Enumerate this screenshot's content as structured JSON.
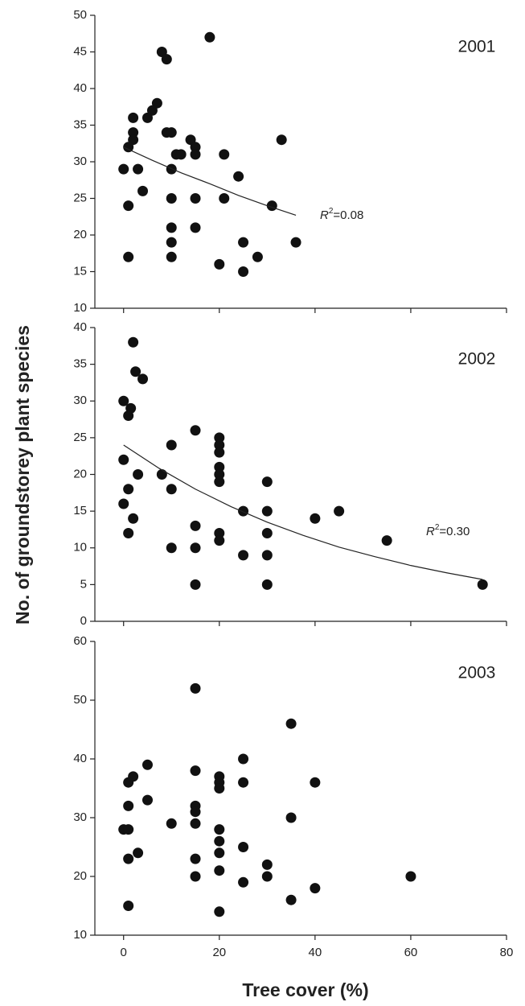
{
  "chart_data": [
    {
      "type": "scatter",
      "title": "2001",
      "x": [
        18,
        8,
        9,
        7,
        6,
        2,
        5,
        2,
        9,
        10,
        14,
        2,
        33,
        1,
        15,
        11,
        12,
        15,
        21,
        0,
        3,
        10,
        24,
        4,
        10,
        15,
        21,
        1,
        31,
        10,
        15,
        10,
        25,
        36,
        1,
        10,
        28,
        20,
        25
      ],
      "values": [
        47,
        45,
        44,
        38,
        37,
        36,
        36,
        34,
        34,
        34,
        33,
        33,
        33,
        32,
        32,
        31,
        31,
        31,
        31,
        29,
        29,
        29,
        28,
        26,
        25,
        25,
        25,
        24,
        24,
        21,
        21,
        19,
        19,
        19,
        17,
        17,
        17,
        16,
        15
      ],
      "color": "#111111",
      "fit": {
        "x": [
          0,
          6,
          12,
          18,
          24,
          30,
          36
        ],
        "values": [
          32,
          30.2,
          28.5,
          27,
          25.4,
          24,
          22.7
        ]
      },
      "annotation": [
        "R",
        "2",
        "=0.08"
      ],
      "xlim": [
        -6,
        80
      ],
      "xticks": [
        0,
        20,
        40,
        60,
        80
      ],
      "ylim": [
        10,
        50
      ],
      "yticks": [
        10,
        15,
        20,
        25,
        30,
        35,
        40,
        45,
        50
      ]
    },
    {
      "type": "scatter",
      "title": "2002",
      "x": [
        2,
        2.5,
        4,
        0,
        1.5,
        1,
        15,
        20,
        20,
        10,
        20,
        0,
        20,
        20,
        3,
        8,
        20,
        30,
        1,
        10,
        0,
        25,
        30,
        45,
        2,
        40,
        15,
        1,
        20,
        30,
        20,
        55,
        10,
        15,
        25,
        30,
        15,
        30,
        75
      ],
      "values": [
        38,
        34,
        33,
        30,
        29,
        28,
        26,
        25,
        24,
        24,
        23,
        22,
        21,
        20,
        20,
        20,
        19,
        19,
        18,
        18,
        16,
        15,
        15,
        15,
        14,
        14,
        13,
        12,
        12,
        12,
        11,
        11,
        10,
        10,
        9,
        9,
        5,
        5,
        5
      ],
      "color": "#111111",
      "fit": {
        "x": [
          0,
          7.5,
          15,
          22.5,
          30,
          37.5,
          45,
          52.5,
          60,
          67.5,
          75
        ],
        "values": [
          24,
          20.8,
          18,
          15.6,
          13.5,
          11.7,
          10.1,
          8.8,
          7.6,
          6.6,
          5.7
        ]
      },
      "annotation": [
        "R",
        "2",
        "=0.30"
      ],
      "ylabel": "No. of groundstorey plant species",
      "xlim": [
        -6,
        80
      ],
      "xticks": [
        0,
        20,
        40,
        60,
        80
      ],
      "ylim": [
        0,
        40
      ],
      "yticks": [
        0,
        5,
        10,
        15,
        20,
        25,
        30,
        35,
        40
      ]
    },
    {
      "type": "scatter",
      "title": "2003",
      "x": [
        15,
        35,
        25,
        5,
        2,
        20,
        1,
        15,
        20,
        25,
        40,
        20,
        5,
        1,
        15,
        15,
        35,
        0,
        1,
        20,
        10,
        15,
        20,
        25,
        3,
        20,
        1,
        15,
        30,
        20,
        15,
        30,
        60,
        25,
        40,
        35,
        1,
        20
      ],
      "values": [
        52,
        46,
        40,
        39,
        37,
        37,
        36,
        38,
        36,
        36,
        36,
        35,
        33,
        32,
        32,
        31,
        30,
        28,
        28,
        28,
        29,
        29,
        26,
        25,
        24,
        24,
        23,
        23,
        22,
        21,
        20,
        20,
        20,
        19,
        18,
        16,
        15,
        14
      ],
      "color": "#111111",
      "xlabel": "Tree cover (%)",
      "xlim": [
        -6,
        80
      ],
      "xticks": [
        0,
        20,
        40,
        60,
        80
      ],
      "ylim": [
        10,
        60
      ],
      "yticks": [
        10,
        20,
        30,
        40,
        50,
        60
      ]
    }
  ]
}
